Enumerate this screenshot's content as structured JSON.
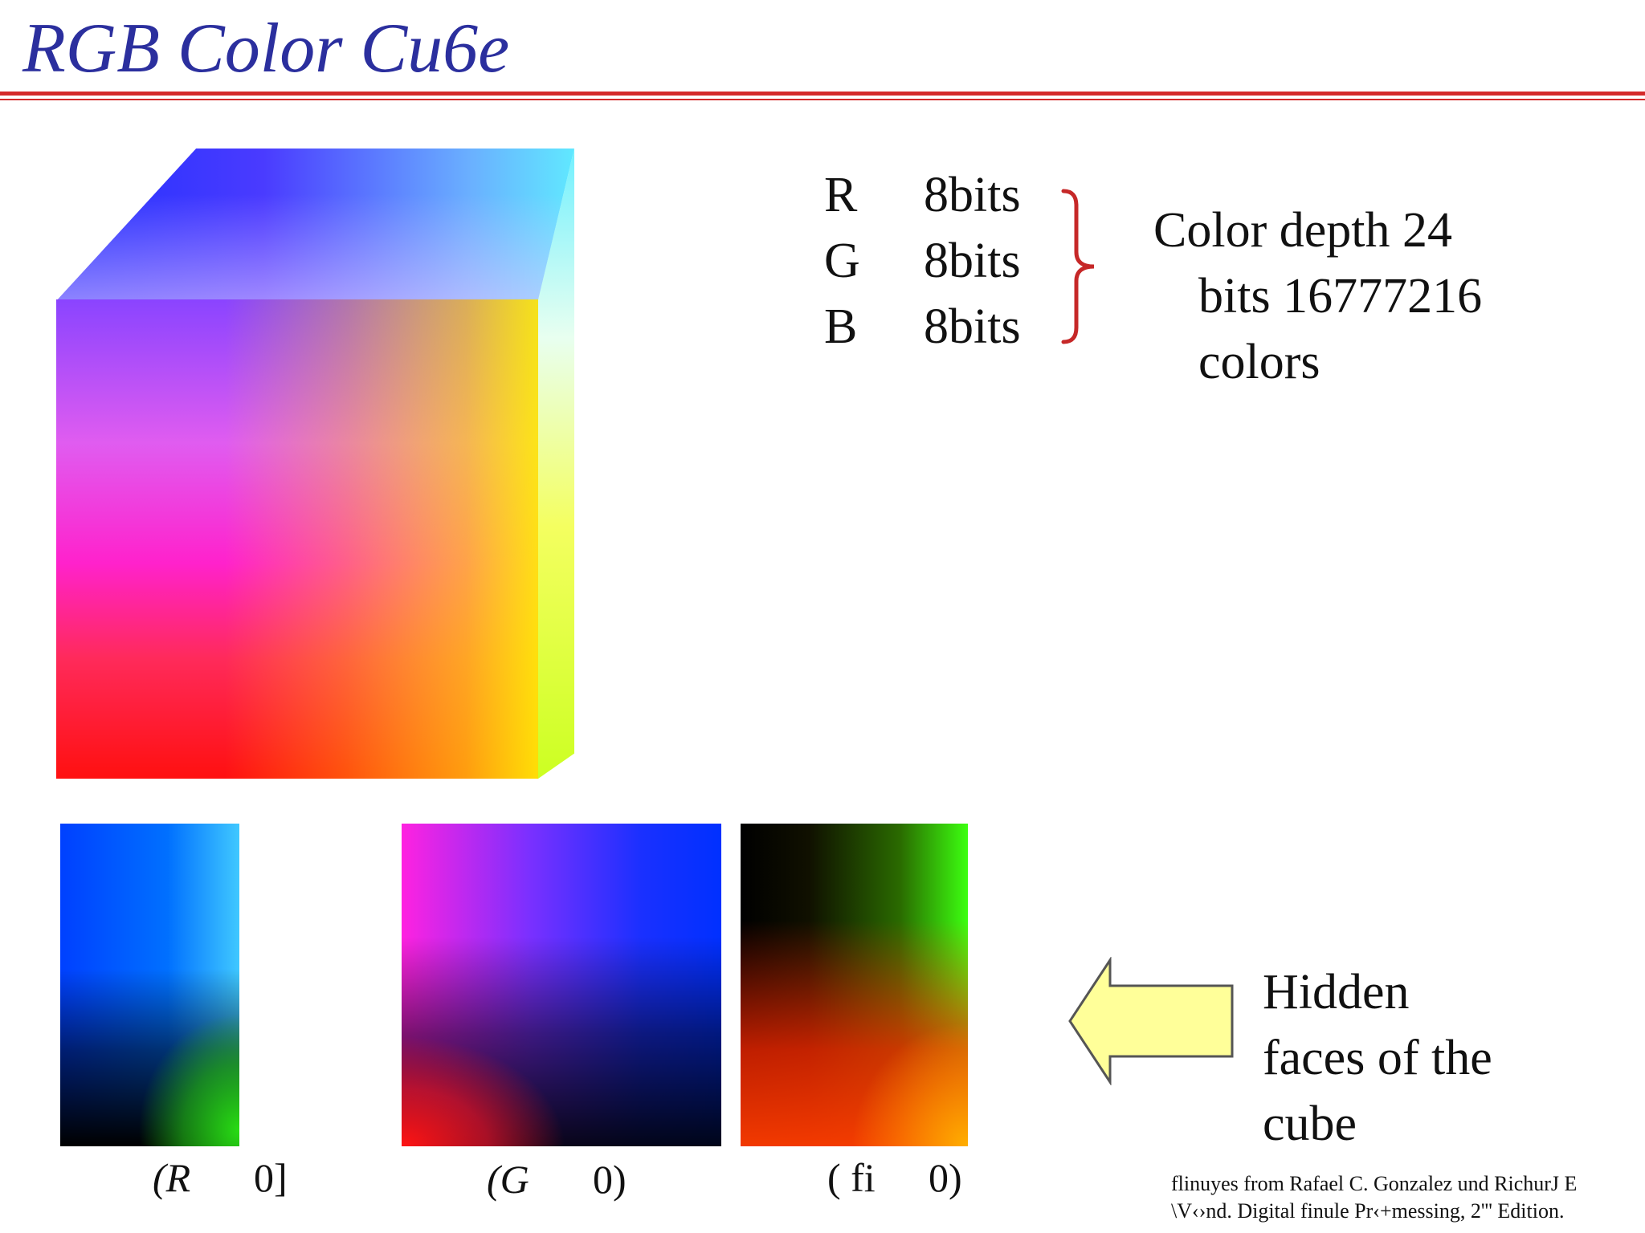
{
  "slide": {
    "title": "RGB Color Cu6e",
    "bits": [
      {
        "channel": "R",
        "value": "8bits"
      },
      {
        "channel": "G",
        "value": "8bits"
      },
      {
        "channel": "B",
        "value": "8bits"
      }
    ],
    "depth_lines": [
      "Color depth 24",
      "bits 16777216",
      "colors"
    ],
    "hidden_lines": [
      "Hidden",
      "faces of the",
      "cube"
    ],
    "captions": [
      {
        "letter": "(R",
        "num": "0]"
      },
      {
        "letter": "(G",
        "num": "0)"
      },
      {
        "letter": "( fi",
        "num": "0)"
      }
    ],
    "credit_lines": [
      "flinuyes from Rafael C. Gonzalez und RichurJ E",
      "\\V‹›nd. Digital finule Pr‹+messing, 2''' Edition."
    ],
    "colors": {
      "title": "#2b2f9e",
      "rule": "#d42a2a",
      "arrow_fill": "#ffff99",
      "brace": "#c62828"
    }
  }
}
